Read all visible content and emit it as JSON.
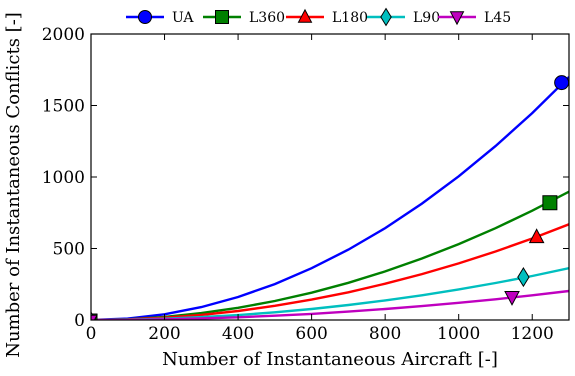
{
  "chart_data": {
    "type": "line",
    "title": "",
    "xlabel": "Number of Instantaneous Aircraft [-]",
    "ylabel": "Number of Instantaneous Conflicts [-]",
    "xlim": [
      0,
      1300
    ],
    "ylim": [
      0,
      2000
    ],
    "xticks": [
      "0",
      "200",
      "400",
      "600",
      "800",
      "1000",
      "1200"
    ],
    "yticks": [
      "0",
      "500",
      "1000",
      "1500",
      "2000"
    ],
    "grid": false,
    "legend_position": "top",
    "x": [
      0,
      100,
      200,
      300,
      400,
      500,
      600,
      700,
      800,
      900,
      1000,
      1100,
      1200,
      1300
    ],
    "series": [
      {
        "name": "UA",
        "color": "#0000ff",
        "marker": "circle",
        "values": [
          0,
          10,
          40,
          90,
          161,
          251,
          362,
          492,
          643,
          814,
          1005,
          1216,
          1447,
          1699
        ],
        "marker_point": [
          1280,
          1660
        ]
      },
      {
        "name": "L360",
        "color": "#008000",
        "marker": "square",
        "values": [
          0,
          5,
          21,
          48,
          85,
          133,
          191,
          260,
          340,
          430,
          531,
          642,
          764,
          897
        ],
        "marker_point": [
          1248,
          820
        ]
      },
      {
        "name": "L180",
        "color": "#ff0000",
        "marker": "triangle-up",
        "values": [
          0,
          4,
          16,
          36,
          63,
          99,
          143,
          194,
          254,
          321,
          396,
          479,
          570,
          669
        ],
        "marker_point": [
          1212,
          580
        ]
      },
      {
        "name": "L90",
        "color": "#00bfbf",
        "marker": "diamond",
        "values": [
          0,
          2,
          9,
          20,
          34,
          54,
          77,
          105,
          137,
          173,
          214,
          259,
          308,
          362
        ],
        "marker_point": [
          1176,
          300
        ]
      },
      {
        "name": "L45",
        "color": "#bf00bf",
        "marker": "triangle-down",
        "values": [
          0,
          1,
          5,
          11,
          19,
          30,
          43,
          59,
          77,
          97,
          120,
          145,
          173,
          203
        ],
        "marker_point": [
          1145,
          160
        ]
      }
    ]
  }
}
